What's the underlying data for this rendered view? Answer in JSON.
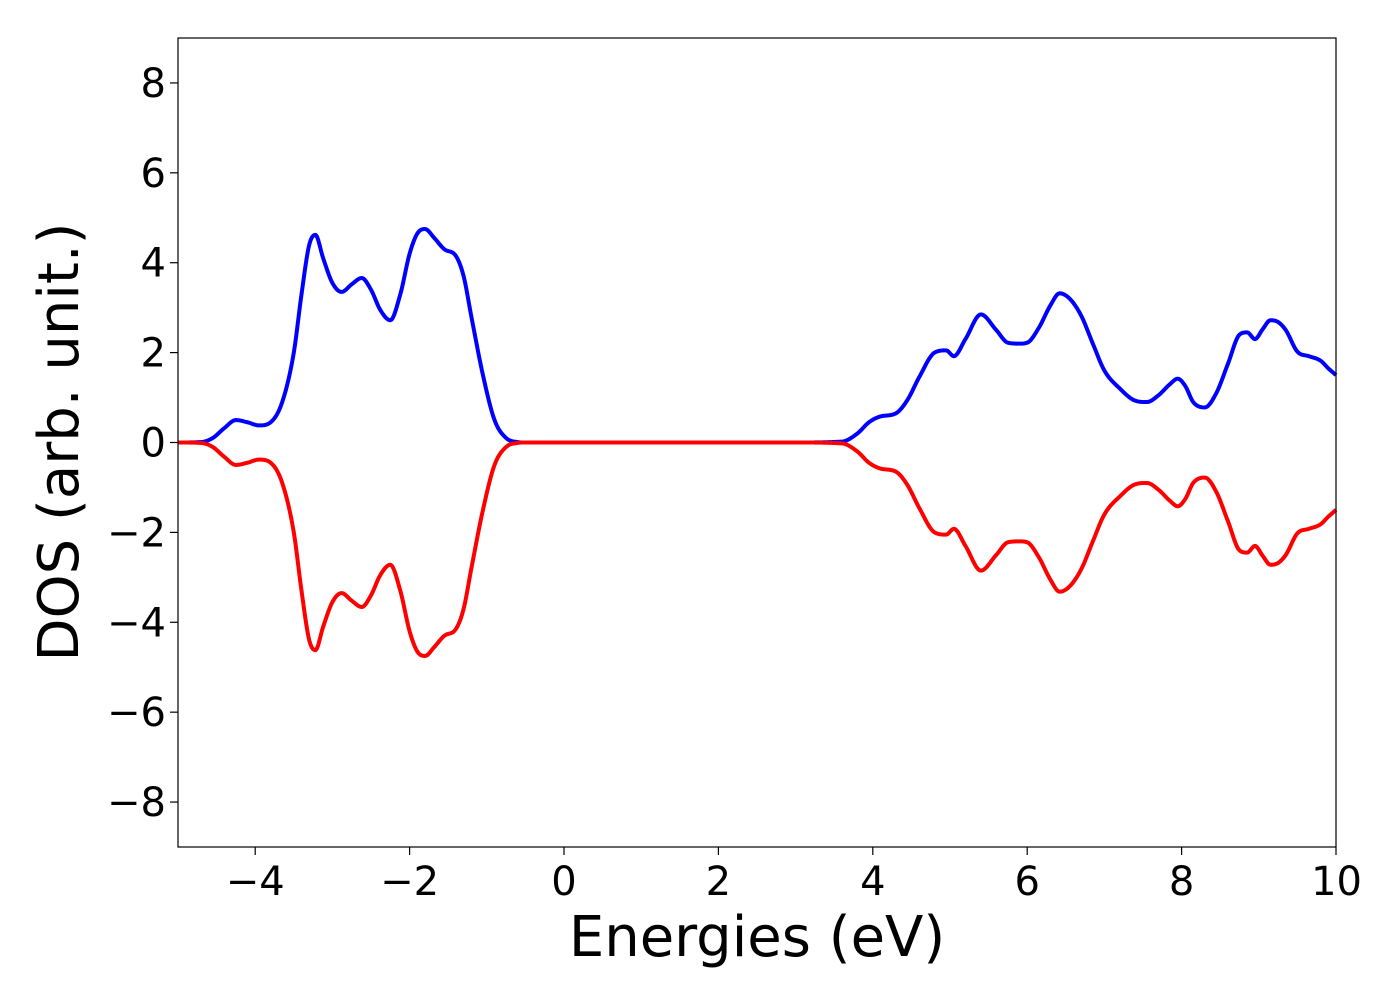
{
  "chart_data": {
    "type": "line",
    "title": "",
    "xlabel": "Energies (eV)",
    "ylabel": "DOS (arb. unit.)",
    "xlim": [
      -5,
      10
    ],
    "ylim": [
      -9,
      9
    ],
    "xticks": [
      -4,
      -2,
      0,
      2,
      4,
      6,
      8,
      10
    ],
    "xtick_labels": [
      "−4",
      "−2",
      "0",
      "2",
      "4",
      "6",
      "8",
      "10"
    ],
    "yticks": [
      -8,
      -6,
      -4,
      -2,
      0,
      2,
      4,
      6,
      8
    ],
    "ytick_labels": [
      "−8",
      "−6",
      "−4",
      "−2",
      "0",
      "2",
      "4",
      "6",
      "8"
    ],
    "grid": false,
    "legend": "none",
    "series": [
      {
        "color": "#0000ff",
        "x": [
          -5.0,
          -4.7,
          -4.55,
          -4.4,
          -4.25,
          -4.1,
          -3.95,
          -3.8,
          -3.65,
          -3.5,
          -3.4,
          -3.3,
          -3.22,
          -3.12,
          -3.0,
          -2.88,
          -2.75,
          -2.62,
          -2.5,
          -2.38,
          -2.25,
          -2.12,
          -2.0,
          -1.9,
          -1.8,
          -1.68,
          -1.55,
          -1.4,
          -1.3,
          -1.2,
          -1.05,
          -0.9,
          -0.75,
          -0.6,
          -0.5,
          0.0,
          1.0,
          2.0,
          3.0,
          3.6,
          3.8,
          3.95,
          4.1,
          4.3,
          4.45,
          4.6,
          4.8,
          4.95,
          5.05,
          5.2,
          5.4,
          5.6,
          5.75,
          5.9,
          6.0,
          6.15,
          6.3,
          6.42,
          6.55,
          6.7,
          6.85,
          7.0,
          7.2,
          7.4,
          7.55,
          7.7,
          7.85,
          7.95,
          8.05,
          8.15,
          8.3,
          8.45,
          8.6,
          8.75,
          8.85,
          8.95,
          9.05,
          9.15,
          9.25,
          9.35,
          9.5,
          9.65,
          9.8,
          9.9,
          10.0
        ],
        "y": [
          0.0,
          0.01,
          0.1,
          0.32,
          0.5,
          0.45,
          0.38,
          0.45,
          0.9,
          2.0,
          3.3,
          4.4,
          4.62,
          4.1,
          3.55,
          3.35,
          3.52,
          3.66,
          3.4,
          2.95,
          2.72,
          3.3,
          4.2,
          4.65,
          4.75,
          4.55,
          4.3,
          4.15,
          3.7,
          2.8,
          1.5,
          0.5,
          0.1,
          0.01,
          0.0,
          0.0,
          0.0,
          0.0,
          0.0,
          0.02,
          0.2,
          0.45,
          0.58,
          0.65,
          0.95,
          1.45,
          2.0,
          2.05,
          1.92,
          2.3,
          2.85,
          2.5,
          2.22,
          2.2,
          2.22,
          2.55,
          3.05,
          3.32,
          3.2,
          2.82,
          2.2,
          1.6,
          1.2,
          0.93,
          0.9,
          1.05,
          1.3,
          1.42,
          1.25,
          0.9,
          0.78,
          1.1,
          1.75,
          2.4,
          2.45,
          2.3,
          2.52,
          2.72,
          2.68,
          2.5,
          2.02,
          1.92,
          1.82,
          1.65,
          1.5
        ]
      },
      {
        "color": "#ff0000",
        "x": [
          -5.0,
          -4.7,
          -4.55,
          -4.4,
          -4.25,
          -4.1,
          -3.95,
          -3.8,
          -3.65,
          -3.5,
          -3.4,
          -3.3,
          -3.22,
          -3.12,
          -3.0,
          -2.88,
          -2.75,
          -2.62,
          -2.5,
          -2.38,
          -2.25,
          -2.12,
          -2.0,
          -1.9,
          -1.8,
          -1.68,
          -1.55,
          -1.4,
          -1.3,
          -1.2,
          -1.05,
          -0.9,
          -0.75,
          -0.6,
          -0.5,
          0.0,
          1.0,
          2.0,
          3.0,
          3.6,
          3.8,
          3.95,
          4.1,
          4.3,
          4.45,
          4.6,
          4.8,
          4.95,
          5.05,
          5.2,
          5.4,
          5.6,
          5.75,
          5.9,
          6.0,
          6.15,
          6.3,
          6.42,
          6.55,
          6.7,
          6.85,
          7.0,
          7.2,
          7.4,
          7.55,
          7.7,
          7.85,
          7.95,
          8.05,
          8.15,
          8.3,
          8.45,
          8.6,
          8.75,
          8.85,
          8.95,
          9.05,
          9.15,
          9.25,
          9.35,
          9.5,
          9.65,
          9.8,
          9.9,
          10.0
        ],
        "y": [
          0.0,
          -0.01,
          -0.1,
          -0.32,
          -0.5,
          -0.45,
          -0.38,
          -0.45,
          -0.9,
          -2.0,
          -3.3,
          -4.4,
          -4.62,
          -4.1,
          -3.55,
          -3.35,
          -3.52,
          -3.66,
          -3.4,
          -2.95,
          -2.72,
          -3.3,
          -4.2,
          -4.65,
          -4.75,
          -4.55,
          -4.3,
          -4.15,
          -3.7,
          -2.8,
          -1.5,
          -0.5,
          -0.1,
          -0.01,
          0.0,
          0.0,
          0.0,
          0.0,
          0.0,
          -0.02,
          -0.2,
          -0.45,
          -0.58,
          -0.65,
          -0.95,
          -1.45,
          -2.0,
          -2.05,
          -1.92,
          -2.3,
          -2.85,
          -2.5,
          -2.22,
          -2.2,
          -2.22,
          -2.55,
          -3.05,
          -3.32,
          -3.2,
          -2.82,
          -2.2,
          -1.6,
          -1.2,
          -0.93,
          -0.9,
          -1.05,
          -1.3,
          -1.42,
          -1.25,
          -0.9,
          -0.78,
          -1.1,
          -1.75,
          -2.4,
          -2.45,
          -2.3,
          -2.52,
          -2.72,
          -2.68,
          -2.5,
          -2.02,
          -1.92,
          -1.82,
          -1.65,
          -1.5
        ]
      }
    ]
  }
}
